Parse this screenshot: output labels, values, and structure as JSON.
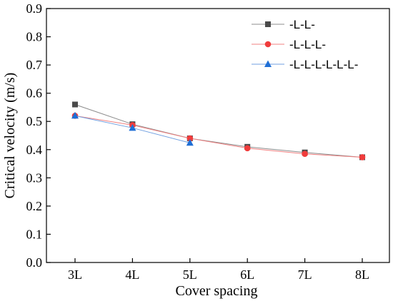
{
  "chart_data": {
    "type": "line",
    "title": "",
    "xlabel": "Cover spacing",
    "ylabel": "Critical velocity (m/s)",
    "categories": [
      "3L",
      "4L",
      "5L",
      "6L",
      "7L",
      "8L"
    ],
    "ylim": [
      0,
      0.9
    ],
    "yticks": [
      "0.0",
      "0.1",
      "0.2",
      "0.3",
      "0.4",
      "0.5",
      "0.6",
      "0.7",
      "0.8",
      "0.9"
    ],
    "grid": false,
    "legend_position": "top-right",
    "series": [
      {
        "name": "-L-L-",
        "marker": "square",
        "color": "#4a4a4a",
        "line_color": "#8c8c8c",
        "values": [
          0.56,
          0.49,
          0.44,
          0.41,
          0.39,
          0.373
        ]
      },
      {
        "name": "-L-L-L-",
        "marker": "circle",
        "color": "#f03c3c",
        "line_color": "#f08080",
        "values": [
          0.52,
          0.487,
          0.44,
          0.405,
          0.385,
          0.373
        ]
      },
      {
        "name": "-L-L-L-L-L-L-",
        "marker": "triangle",
        "color": "#1f6fd6",
        "line_color": "#6f9fe0",
        "values": [
          0.52,
          0.477,
          0.424,
          null,
          null,
          null
        ]
      }
    ]
  }
}
